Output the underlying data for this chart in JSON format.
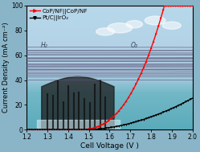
{
  "title": "",
  "xlabel": "Cell Voltage (V )",
  "ylabel": "Current Density (mA cm⁻²)",
  "xlim": [
    1.2,
    2.0
  ],
  "ylim": [
    0,
    100
  ],
  "xticks": [
    1.2,
    1.3,
    1.4,
    1.5,
    1.6,
    1.7,
    1.8,
    1.9,
    2.0
  ],
  "yticks": [
    0,
    20,
    40,
    60,
    80,
    100
  ],
  "legend1_label": "CoP/NF||CoP/NF",
  "legend2_label": "Pt/C||IrO₂",
  "line1_color": "#ff0000",
  "line2_color": "#000000",
  "figsize": [
    2.49,
    1.89
  ],
  "dpi": 100,
  "xlabel_fontsize": 6.5,
  "ylabel_fontsize": 6,
  "tick_fontsize": 5.5,
  "legend_fontsize": 5.2,
  "bg_sky_top": "#b8d8e8",
  "bg_sky_bottom": "#a0cde0",
  "bg_water": "#7bbccc",
  "bg_water_bottom": "#5aa8be"
}
